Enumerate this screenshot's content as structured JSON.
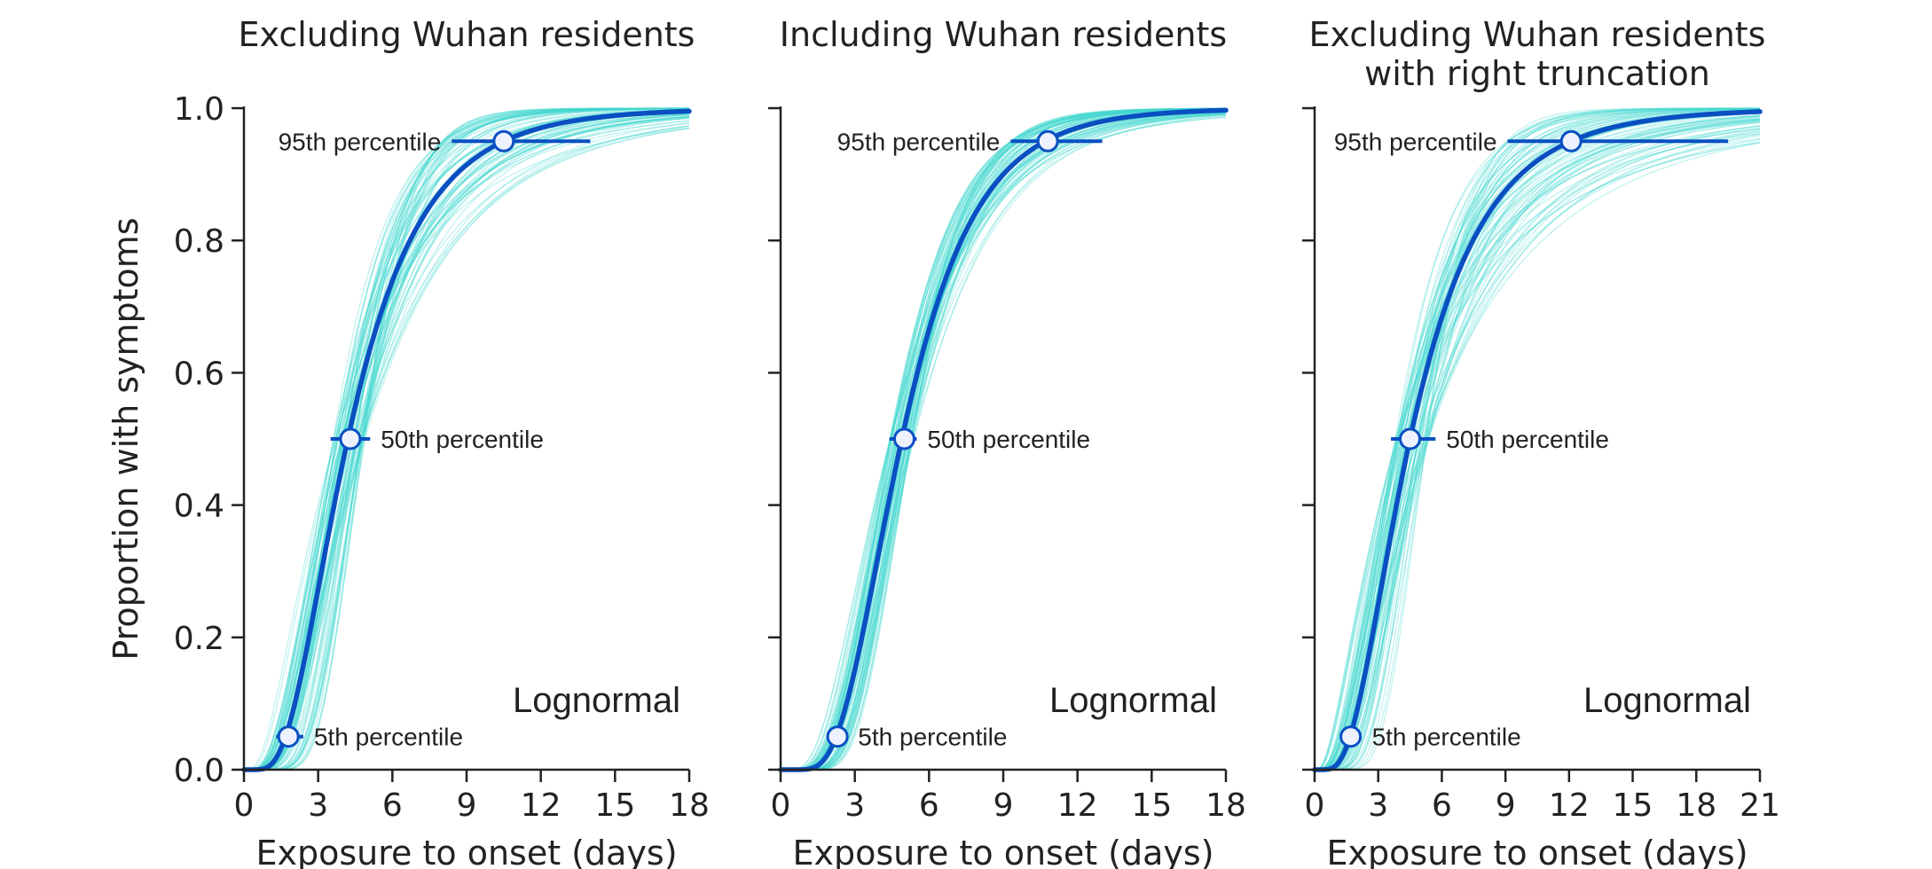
{
  "chart_data": [
    {
      "type": "line",
      "title": "Excluding Wuhan residents",
      "title_lines": [
        "Excluding Wuhan residents"
      ],
      "xlabel": "Exposure to onset (days)",
      "ylabel": "Proportion with symptoms",
      "xlim": [
        0,
        18
      ],
      "ylim": [
        0,
        1
      ],
      "x_ticks": [
        0,
        3,
        6,
        9,
        12,
        15,
        18
      ],
      "y_ticks": [
        "0.0",
        "0.2",
        "0.4",
        "0.6",
        "0.8",
        "1.0"
      ],
      "show_y_ticklabels": true,
      "distribution_label": "Lognormal",
      "series": [
        {
          "kind": "cdf",
          "distribution": "lognormal",
          "median": 4.2,
          "p95": 10.5,
          "x_max": 18,
          "color": "#0a4fc2"
        }
      ],
      "posterior_samples": {
        "count": 80,
        "median_range": [
          3.6,
          4.9
        ],
        "p95_range": [
          8.0,
          15.5
        ],
        "color": "#3fd8cf"
      },
      "percentiles": [
        {
          "label": "5th percentile",
          "p": 0.05,
          "x": 1.8,
          "ci": [
            1.3,
            2.4
          ],
          "label_side": "right"
        },
        {
          "label": "50th percentile",
          "p": 0.5,
          "x": 4.3,
          "ci": [
            3.5,
            5.1
          ],
          "label_side": "right"
        },
        {
          "label": "95th percentile",
          "p": 0.95,
          "x": 10.5,
          "ci": [
            8.4,
            14.0
          ],
          "label_side": "left"
        }
      ]
    },
    {
      "type": "line",
      "title": "Including Wuhan residents",
      "title_lines": [
        "Including Wuhan residents"
      ],
      "xlabel": "Exposure to onset (days)",
      "ylabel": "",
      "xlim": [
        0,
        18
      ],
      "ylim": [
        0,
        1
      ],
      "x_ticks": [
        0,
        3,
        6,
        9,
        12,
        15,
        18
      ],
      "y_ticks": [
        "0.0",
        "0.2",
        "0.4",
        "0.6",
        "0.8",
        "1.0"
      ],
      "show_y_ticklabels": false,
      "distribution_label": "Lognormal",
      "series": [
        {
          "kind": "cdf",
          "distribution": "lognormal",
          "median": 4.9,
          "p95": 10.7,
          "x_max": 18,
          "color": "#0a4fc2"
        }
      ],
      "posterior_samples": {
        "count": 80,
        "median_range": [
          4.4,
          5.4
        ],
        "p95_range": [
          9.3,
          12.8
        ],
        "color": "#3fd8cf"
      },
      "percentiles": [
        {
          "label": "5th percentile",
          "p": 0.05,
          "x": 2.3,
          "ci": [
            1.9,
            2.7
          ],
          "label_side": "right"
        },
        {
          "label": "50th percentile",
          "p": 0.5,
          "x": 5.0,
          "ci": [
            4.4,
            5.5
          ],
          "label_side": "right"
        },
        {
          "label": "95th percentile",
          "p": 0.95,
          "x": 10.8,
          "ci": [
            9.3,
            13.0
          ],
          "label_side": "left"
        }
      ]
    },
    {
      "type": "line",
      "title": "Excluding Wuhan residents with right truncation",
      "title_lines": [
        "Excluding Wuhan residents",
        "with right truncation"
      ],
      "xlabel": "Exposure to onset (days)",
      "ylabel": "",
      "xlim": [
        0,
        21
      ],
      "ylim": [
        0,
        1
      ],
      "x_ticks": [
        0,
        3,
        6,
        9,
        12,
        15,
        18,
        21
      ],
      "y_ticks": [
        "0.0",
        "0.2",
        "0.4",
        "0.6",
        "0.8",
        "1.0"
      ],
      "show_y_ticklabels": false,
      "distribution_label": "Lognormal",
      "series": [
        {
          "kind": "cdf",
          "distribution": "lognormal",
          "median": 4.5,
          "p95": 12.1,
          "x_max": 21,
          "color": "#0a4fc2"
        }
      ],
      "posterior_samples": {
        "count": 80,
        "median_range": [
          3.8,
          5.4
        ],
        "p95_range": [
          9.0,
          22.0
        ],
        "color": "#3fd8cf"
      },
      "percentiles": [
        {
          "label": "5th percentile",
          "p": 0.05,
          "x": 1.7,
          "ci": [
            1.2,
            2.2
          ],
          "label_side": "right"
        },
        {
          "label": "50th percentile",
          "p": 0.5,
          "x": 4.5,
          "ci": [
            3.6,
            5.7
          ],
          "label_side": "right"
        },
        {
          "label": "95th percentile",
          "p": 0.95,
          "x": 12.1,
          "ci": [
            9.1,
            19.5
          ],
          "label_side": "left"
        }
      ]
    }
  ]
}
